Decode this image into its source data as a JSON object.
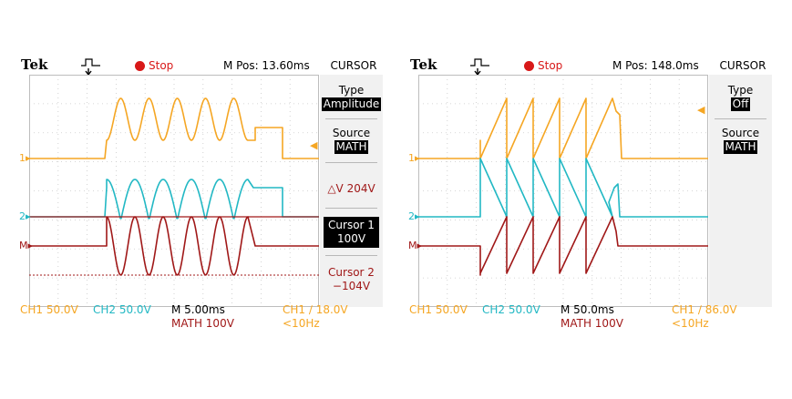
{
  "colors": {
    "ch1": "#f5a623",
    "ch2": "#22b8c4",
    "math": "#a01818",
    "stop": "#d81818"
  },
  "scopes": [
    {
      "brand": "Tek",
      "status": "Stop",
      "mpos": "M Pos: 13.60ms",
      "menu": "CURSOR",
      "side": {
        "type_label": "Type",
        "type_value": "Amplitude",
        "source_label": "Source",
        "source_value": "MATH",
        "delta": "△V 204V",
        "cursor1_label": "Cursor 1",
        "cursor1_value": "100V",
        "cursor2_label": "Cursor 2",
        "cursor2_value": "−104V"
      },
      "bottom": {
        "ch1": "CH1  50.0V",
        "ch2": "CH2  50.0V",
        "timebase": "M 5.00ms",
        "math": "MATH 100V",
        "trig": "CH1 ∕ 18.0V",
        "freq": "<10Hz"
      },
      "markers": {
        "ch1": "1▸",
        "ch2": "2▸",
        "math": "M▸"
      }
    },
    {
      "brand": "Tek",
      "status": "Stop",
      "mpos": "M Pos: 148.0ms",
      "menu": "CURSOR",
      "side": {
        "type_label": "Type",
        "type_value": "Off",
        "source_label": "Source",
        "source_value": "MATH"
      },
      "bottom": {
        "ch1": "CH1  50.0V",
        "ch2": "CH2  50.0V",
        "timebase": "M 50.0ms",
        "math": "MATH 100V",
        "trig": "CH1 ∕ 86.0V",
        "freq": "<10Hz"
      },
      "markers": {
        "ch1": "1▸",
        "ch2": "2▸",
        "math": "M▸"
      }
    }
  ]
}
